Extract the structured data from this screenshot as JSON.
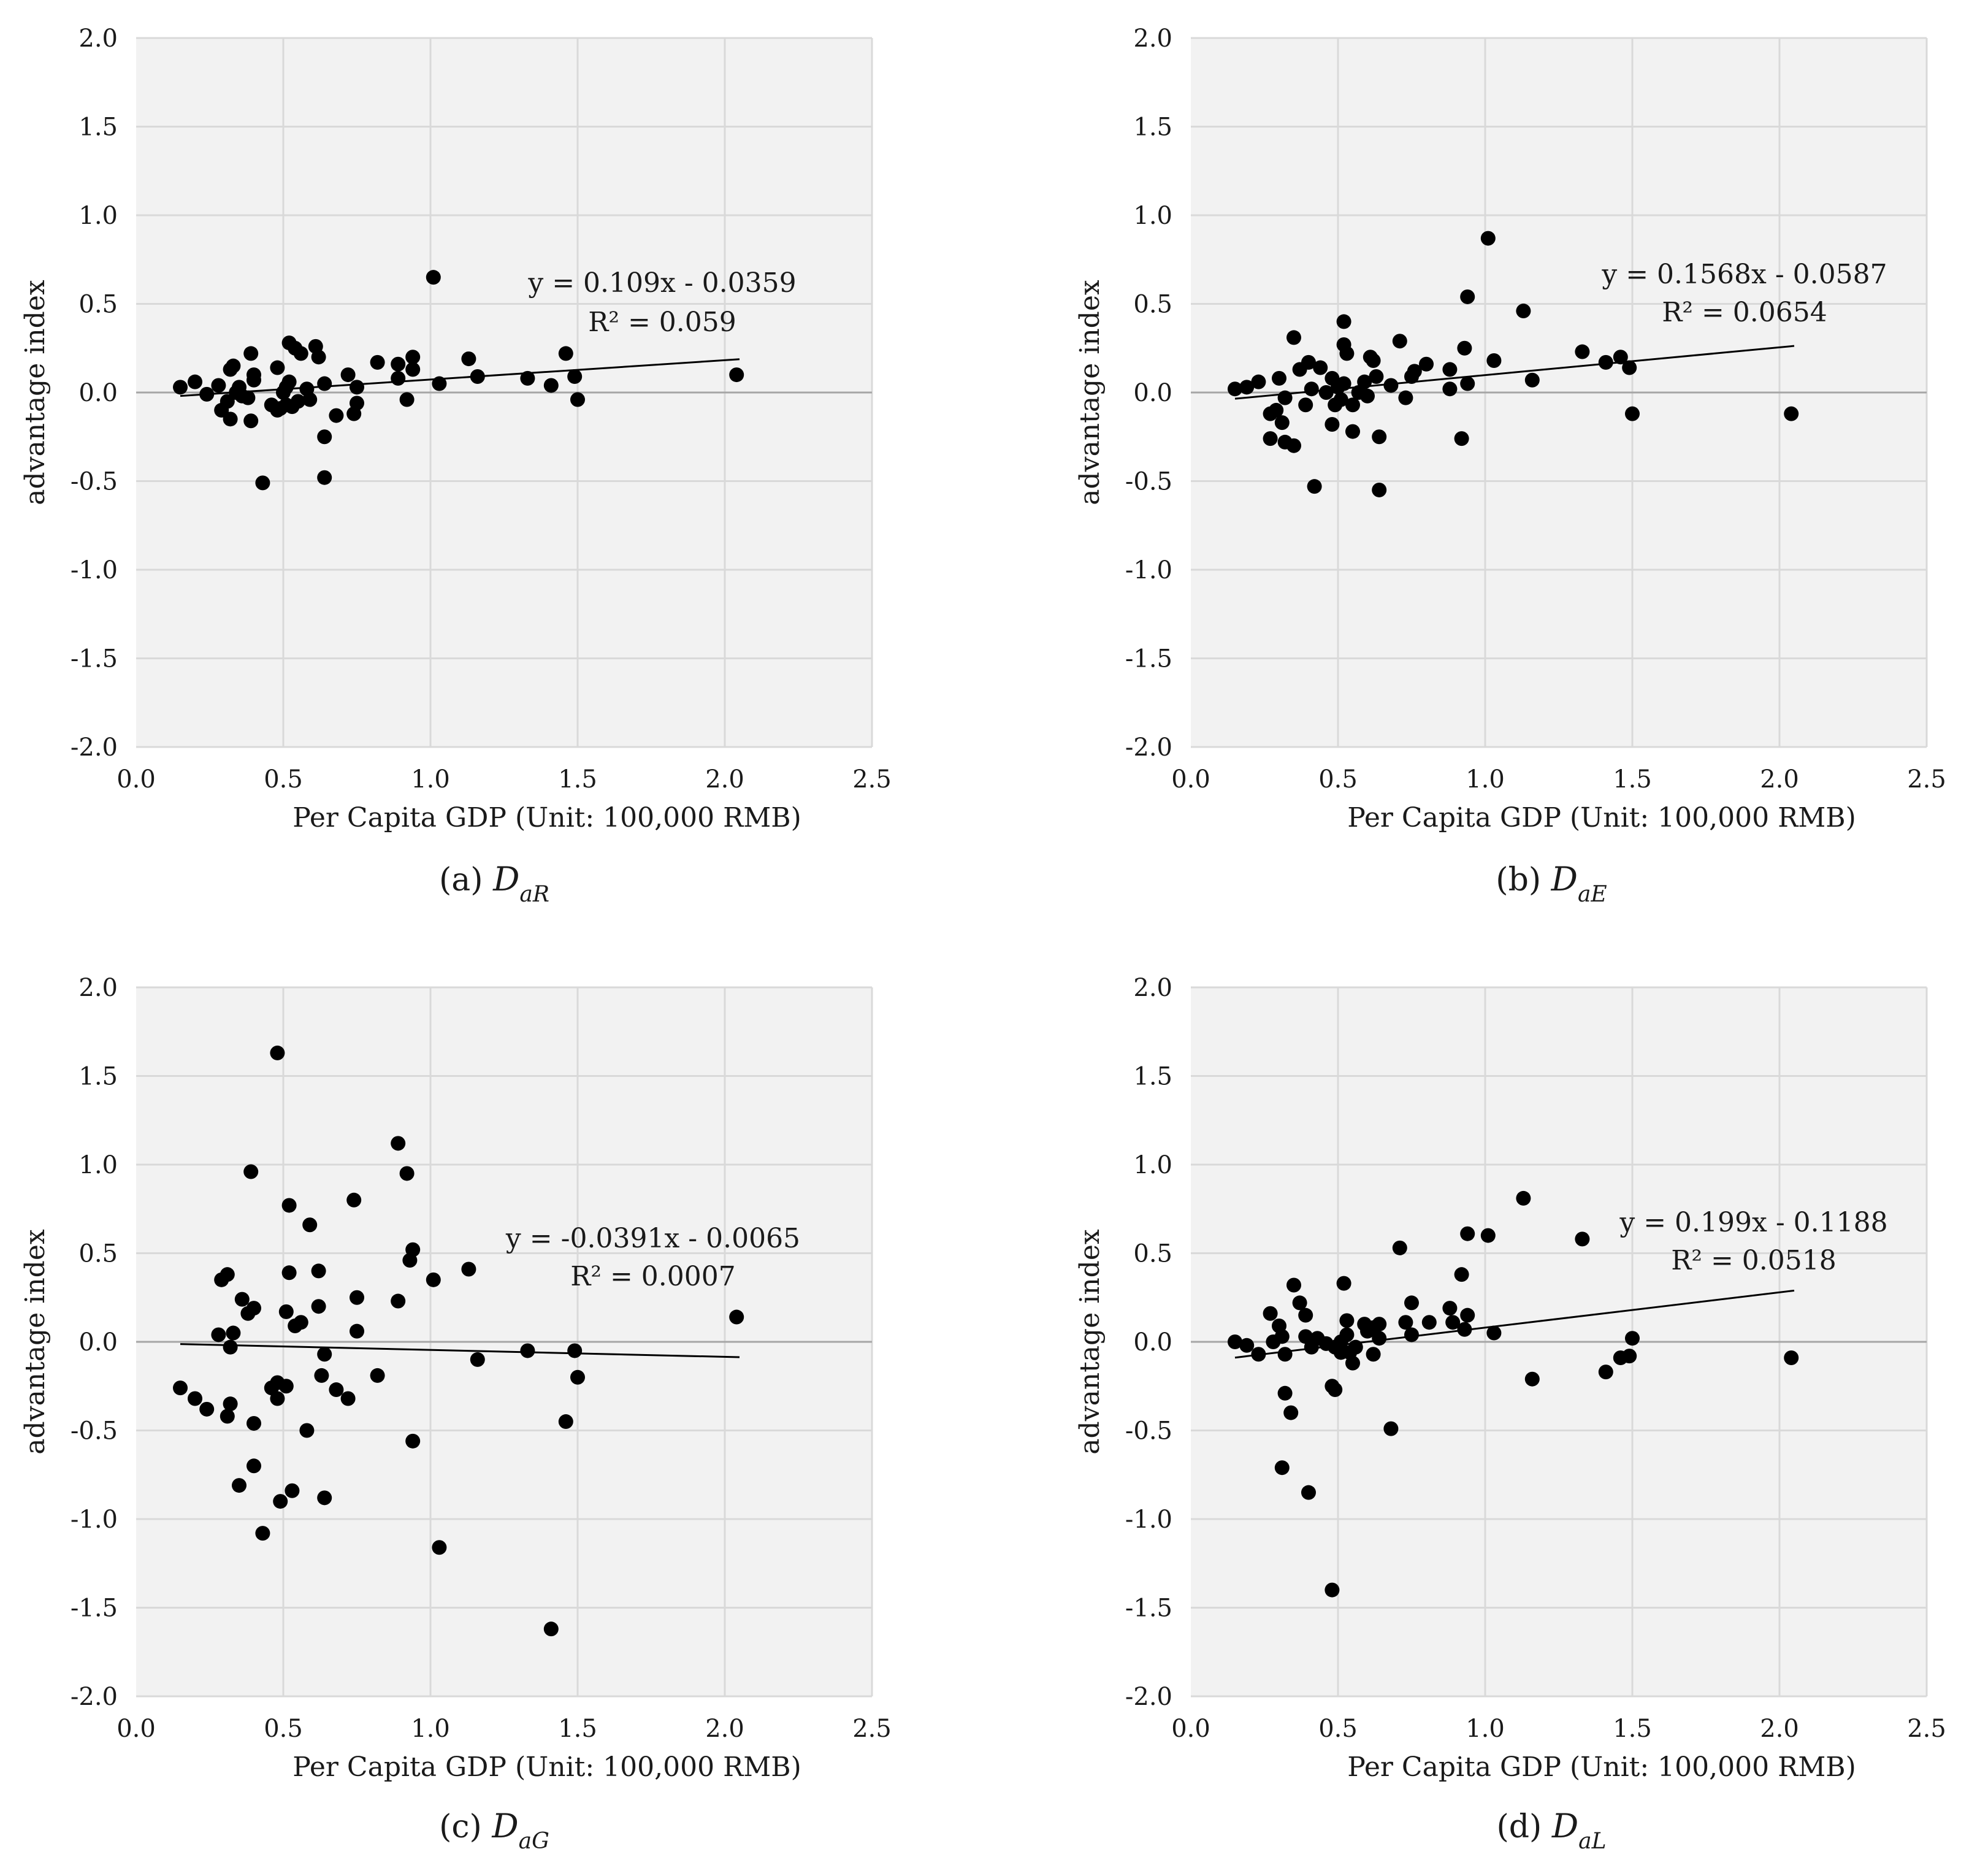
{
  "chart_data": [
    {
      "type": "scatter",
      "caption": {
        "prefix": "(a) ",
        "symbol": "D",
        "sub": "aR"
      },
      "xlabel": "Per Capita GDP (Unit: 100,000 RMB)",
      "ylabel": "advantage index",
      "xlim": [
        0,
        2.5
      ],
      "ylim": [
        -2,
        2
      ],
      "xticks": [
        "0.0",
        "0.5",
        "1.0",
        "1.5",
        "2.0",
        "2.5"
      ],
      "yticks": [
        "2.0",
        "1.5",
        "1.0",
        "0.5",
        "0.0",
        "-0.5",
        "-1.0",
        "-1.5",
        "-2.0"
      ],
      "grid": true,
      "trendline": {
        "slope": 0.109,
        "intercept": -0.0359,
        "x_range": [
          0.15,
          2.05
        ]
      },
      "equation": "y = 0.109x - 0.0359",
      "r2": "R² = 0.059",
      "points": [
        [
          0.15,
          0.03
        ],
        [
          0.2,
          0.06
        ],
        [
          0.24,
          -0.01
        ],
        [
          0.28,
          0.04
        ],
        [
          0.29,
          -0.1
        ],
        [
          0.31,
          -0.05
        ],
        [
          0.32,
          0.13
        ],
        [
          0.33,
          0.15
        ],
        [
          0.32,
          -0.15
        ],
        [
          0.34,
          0.0
        ],
        [
          0.35,
          0.03
        ],
        [
          0.36,
          -0.02
        ],
        [
          0.38,
          -0.03
        ],
        [
          0.39,
          -0.16
        ],
        [
          0.4,
          0.07
        ],
        [
          0.4,
          0.1
        ],
        [
          0.39,
          0.22
        ],
        [
          0.43,
          -0.51
        ],
        [
          0.46,
          -0.07
        ],
        [
          0.48,
          -0.1
        ],
        [
          0.48,
          0.14
        ],
        [
          0.49,
          -0.09
        ],
        [
          0.5,
          0.0
        ],
        [
          0.51,
          0.03
        ],
        [
          0.51,
          -0.07
        ],
        [
          0.52,
          0.28
        ],
        [
          0.52,
          0.06
        ],
        [
          0.53,
          -0.08
        ],
        [
          0.54,
          0.25
        ],
        [
          0.56,
          0.22
        ],
        [
          0.55,
          -0.05
        ],
        [
          0.58,
          0.02
        ],
        [
          0.59,
          -0.04
        ],
        [
          0.61,
          0.26
        ],
        [
          0.62,
          0.2
        ],
        [
          0.64,
          0.05
        ],
        [
          0.64,
          -0.25
        ],
        [
          0.64,
          -0.48
        ],
        [
          0.68,
          -0.13
        ],
        [
          0.72,
          0.1
        ],
        [
          0.74,
          -0.12
        ],
        [
          0.75,
          0.03
        ],
        [
          0.75,
          -0.06
        ],
        [
          0.82,
          0.17
        ],
        [
          0.89,
          0.16
        ],
        [
          0.89,
          0.08
        ],
        [
          0.92,
          -0.04
        ],
        [
          0.94,
          0.2
        ],
        [
          0.94,
          0.13
        ],
        [
          1.01,
          0.65
        ],
        [
          1.03,
          0.05
        ],
        [
          1.13,
          0.19
        ],
        [
          1.16,
          0.09
        ],
        [
          1.33,
          0.08
        ],
        [
          1.41,
          0.04
        ],
        [
          1.46,
          0.22
        ],
        [
          1.49,
          0.09
        ],
        [
          1.5,
          -0.04
        ],
        [
          2.04,
          0.1
        ]
      ]
    },
    {
      "type": "scatter",
      "caption": {
        "prefix": "(b) ",
        "symbol": "D",
        "sub": "aE"
      },
      "xlabel": "Per Capita GDP (Unit: 100,000 RMB)",
      "ylabel": "advantage index",
      "xlim": [
        0,
        2.5
      ],
      "ylim": [
        -2,
        2
      ],
      "xticks": [
        "0.0",
        "0.5",
        "1.0",
        "1.5",
        "2.0",
        "2.5"
      ],
      "yticks": [
        "2.0",
        "1.5",
        "1.0",
        "0.5",
        "0.0",
        "-0.5",
        "-1.0",
        "-1.5",
        "-2.0"
      ],
      "grid": true,
      "trendline": {
        "slope": 0.1568,
        "intercept": -0.0587,
        "x_range": [
          0.15,
          2.05
        ]
      },
      "equation": "y = 0.1568x - 0.0587",
      "r2": "R² = 0.0654",
      "points": [
        [
          0.15,
          0.02
        ],
        [
          0.19,
          0.03
        ],
        [
          0.23,
          0.06
        ],
        [
          0.27,
          -0.12
        ],
        [
          0.27,
          -0.26
        ],
        [
          0.29,
          -0.1
        ],
        [
          0.3,
          0.08
        ],
        [
          0.31,
          -0.17
        ],
        [
          0.32,
          -0.03
        ],
        [
          0.32,
          -0.28
        ],
        [
          0.35,
          -0.3
        ],
        [
          0.35,
          0.31
        ],
        [
          0.37,
          0.13
        ],
        [
          0.39,
          -0.07
        ],
        [
          0.4,
          0.17
        ],
        [
          0.41,
          0.02
        ],
        [
          0.42,
          -0.53
        ],
        [
          0.44,
          0.14
        ],
        [
          0.46,
          0.0
        ],
        [
          0.48,
          0.08
        ],
        [
          0.48,
          -0.18
        ],
        [
          0.49,
          -0.07
        ],
        [
          0.5,
          0.03
        ],
        [
          0.51,
          -0.04
        ],
        [
          0.52,
          0.4
        ],
        [
          0.52,
          0.27
        ],
        [
          0.52,
          0.05
        ],
        [
          0.53,
          0.22
        ],
        [
          0.55,
          -0.22
        ],
        [
          0.55,
          -0.07
        ],
        [
          0.57,
          0.0
        ],
        [
          0.59,
          0.06
        ],
        [
          0.6,
          -0.02
        ],
        [
          0.61,
          0.2
        ],
        [
          0.62,
          0.18
        ],
        [
          0.63,
          0.09
        ],
        [
          0.64,
          -0.25
        ],
        [
          0.64,
          -0.55
        ],
        [
          0.68,
          0.04
        ],
        [
          0.71,
          0.29
        ],
        [
          0.73,
          -0.03
        ],
        [
          0.75,
          0.09
        ],
        [
          0.76,
          0.12
        ],
        [
          0.8,
          0.16
        ],
        [
          0.88,
          0.13
        ],
        [
          0.88,
          0.02
        ],
        [
          0.92,
          -0.26
        ],
        [
          0.93,
          0.25
        ],
        [
          0.94,
          0.54
        ],
        [
          0.94,
          0.05
        ],
        [
          1.01,
          0.87
        ],
        [
          1.03,
          0.18
        ],
        [
          1.13,
          0.46
        ],
        [
          1.16,
          0.07
        ],
        [
          1.33,
          0.23
        ],
        [
          1.41,
          0.17
        ],
        [
          1.46,
          0.2
        ],
        [
          1.49,
          0.14
        ],
        [
          1.5,
          -0.12
        ],
        [
          2.04,
          -0.12
        ]
      ]
    },
    {
      "type": "scatter",
      "caption": {
        "prefix": "(c) ",
        "symbol": "D",
        "sub": "aG"
      },
      "xlabel": "Per Capita GDP (Unit: 100,000 RMB)",
      "ylabel": "advantage index",
      "xlim": [
        0,
        2.5
      ],
      "ylim": [
        -2,
        2
      ],
      "xticks": [
        "0.0",
        "0.5",
        "1.0",
        "1.5",
        "2.0",
        "2.5"
      ],
      "yticks": [
        "2.0",
        "1.5",
        "1.0",
        "0.5",
        "0.0",
        "-0.5",
        "-1.0",
        "-1.5",
        "-2.0"
      ],
      "grid": true,
      "trendline": {
        "slope": -0.0391,
        "intercept": -0.0065,
        "x_range": [
          0.15,
          2.05
        ]
      },
      "equation": "y = -0.0391x - 0.0065",
      "r2": "R² = 0.0007",
      "points": [
        [
          0.15,
          -0.26
        ],
        [
          0.2,
          -0.32
        ],
        [
          0.24,
          -0.38
        ],
        [
          0.28,
          0.04
        ],
        [
          0.29,
          0.35
        ],
        [
          0.31,
          0.38
        ],
        [
          0.31,
          -0.42
        ],
        [
          0.32,
          -0.03
        ],
        [
          0.32,
          -0.35
        ],
        [
          0.33,
          0.05
        ],
        [
          0.35,
          -0.81
        ],
        [
          0.36,
          0.24
        ],
        [
          0.38,
          0.16
        ],
        [
          0.39,
          0.96
        ],
        [
          0.4,
          0.19
        ],
        [
          0.4,
          -0.46
        ],
        [
          0.4,
          -0.7
        ],
        [
          0.43,
          -1.08
        ],
        [
          0.46,
          -0.26
        ],
        [
          0.48,
          1.63
        ],
        [
          0.48,
          -0.23
        ],
        [
          0.48,
          -0.32
        ],
        [
          0.49,
          -0.9
        ],
        [
          0.51,
          0.17
        ],
        [
          0.51,
          -0.25
        ],
        [
          0.52,
          0.77
        ],
        [
          0.52,
          0.39
        ],
        [
          0.53,
          -0.84
        ],
        [
          0.54,
          0.09
        ],
        [
          0.56,
          0.11
        ],
        [
          0.58,
          -0.5
        ],
        [
          0.59,
          0.66
        ],
        [
          0.62,
          0.4
        ],
        [
          0.62,
          0.2
        ],
        [
          0.63,
          -0.19
        ],
        [
          0.64,
          -0.07
        ],
        [
          0.64,
          -0.88
        ],
        [
          0.68,
          -0.27
        ],
        [
          0.72,
          -0.32
        ],
        [
          0.74,
          0.8
        ],
        [
          0.75,
          0.25
        ],
        [
          0.75,
          0.06
        ],
        [
          0.82,
          -0.19
        ],
        [
          0.89,
          1.12
        ],
        [
          0.89,
          0.23
        ],
        [
          0.92,
          0.95
        ],
        [
          0.93,
          0.46
        ],
        [
          0.94,
          0.52
        ],
        [
          0.94,
          -0.56
        ],
        [
          1.01,
          0.35
        ],
        [
          1.03,
          -1.16
        ],
        [
          1.13,
          0.41
        ],
        [
          1.16,
          -0.1
        ],
        [
          1.33,
          -0.05
        ],
        [
          1.41,
          -1.62
        ],
        [
          1.46,
          -0.45
        ],
        [
          1.49,
          -0.05
        ],
        [
          1.5,
          -0.2
        ],
        [
          2.04,
          0.14
        ]
      ]
    },
    {
      "type": "scatter",
      "caption": {
        "prefix": "(d) ",
        "symbol": "D",
        "sub": "aL"
      },
      "xlabel": "Per Capita GDP (Unit: 100,000 RMB)",
      "ylabel": "advantage index",
      "xlim": [
        0,
        2.5
      ],
      "ylim": [
        -2,
        2
      ],
      "xticks": [
        "0.0",
        "0.5",
        "1.0",
        "1.5",
        "2.0",
        "2.5"
      ],
      "yticks": [
        "2.0",
        "1.5",
        "1.0",
        "0.5",
        "0.0",
        "-0.5",
        "-1.0",
        "-1.5",
        "-2.0"
      ],
      "grid": true,
      "trendline": {
        "slope": 0.199,
        "intercept": -0.1188,
        "x_range": [
          0.15,
          2.05
        ]
      },
      "equation": "y = 0.199x - 0.1188",
      "r2": "R² = 0.0518",
      "points": [
        [
          0.15,
          0.0
        ],
        [
          0.19,
          -0.02
        ],
        [
          0.23,
          -0.07
        ],
        [
          0.27,
          0.16
        ],
        [
          0.28,
          0.0
        ],
        [
          0.3,
          0.09
        ],
        [
          0.31,
          -0.71
        ],
        [
          0.31,
          0.03
        ],
        [
          0.32,
          -0.07
        ],
        [
          0.32,
          -0.29
        ],
        [
          0.34,
          -0.4
        ],
        [
          0.35,
          0.32
        ],
        [
          0.37,
          0.22
        ],
        [
          0.39,
          0.15
        ],
        [
          0.39,
          0.03
        ],
        [
          0.4,
          -0.85
        ],
        [
          0.41,
          -0.03
        ],
        [
          0.43,
          0.02
        ],
        [
          0.46,
          -0.01
        ],
        [
          0.48,
          -1.4
        ],
        [
          0.48,
          -0.25
        ],
        [
          0.49,
          -0.27
        ],
        [
          0.49,
          -0.03
        ],
        [
          0.51,
          0.0
        ],
        [
          0.51,
          -0.06
        ],
        [
          0.52,
          0.33
        ],
        [
          0.53,
          0.12
        ],
        [
          0.53,
          0.04
        ],
        [
          0.54,
          -0.06
        ],
        [
          0.55,
          -0.12
        ],
        [
          0.56,
          -0.03
        ],
        [
          0.59,
          0.1
        ],
        [
          0.6,
          0.06
        ],
        [
          0.62,
          0.08
        ],
        [
          0.62,
          -0.07
        ],
        [
          0.64,
          0.1
        ],
        [
          0.64,
          0.02
        ],
        [
          0.68,
          -0.49
        ],
        [
          0.71,
          0.53
        ],
        [
          0.73,
          0.11
        ],
        [
          0.75,
          0.22
        ],
        [
          0.75,
          0.04
        ],
        [
          0.81,
          0.11
        ],
        [
          0.88,
          0.19
        ],
        [
          0.89,
          0.11
        ],
        [
          0.92,
          0.38
        ],
        [
          0.93,
          0.07
        ],
        [
          0.94,
          0.61
        ],
        [
          0.94,
          0.15
        ],
        [
          1.01,
          0.6
        ],
        [
          1.03,
          0.05
        ],
        [
          1.13,
          0.81
        ],
        [
          1.16,
          -0.21
        ],
        [
          1.33,
          0.58
        ],
        [
          1.41,
          -0.17
        ],
        [
          1.46,
          -0.09
        ],
        [
          1.49,
          -0.08
        ],
        [
          1.5,
          0.02
        ],
        [
          2.04,
          -0.09
        ]
      ]
    }
  ]
}
